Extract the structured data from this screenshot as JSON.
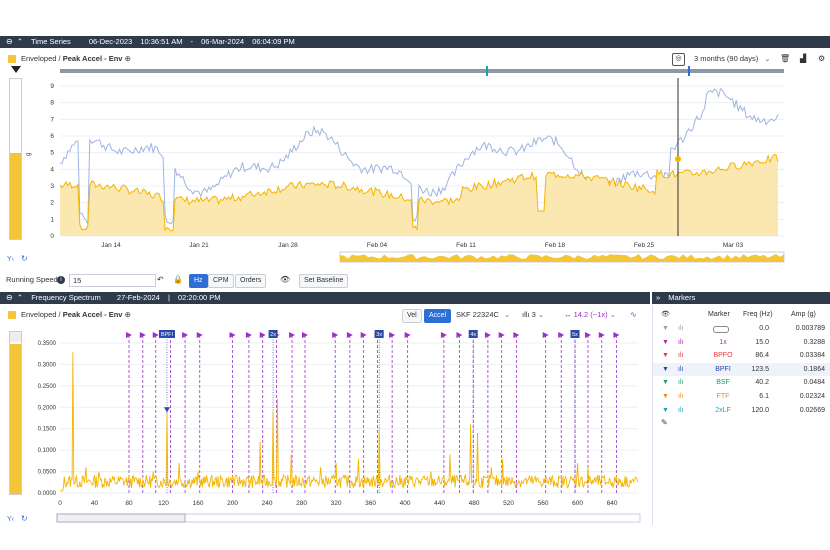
{
  "ts_header": {
    "title": "Time Series",
    "start": "06-Dec-2023",
    "start_time": "10:36:51 AM",
    "end": "06-Mar-2024",
    "end_time": "06:04:09 PM"
  },
  "ts_toolbar": {
    "measurement_prefix": "Enveloped /",
    "measurement": "Peak Accel - Env",
    "range": "3 months (90 days)"
  },
  "ts_chart": {
    "y_ticks": [
      "0",
      "1",
      "2",
      "3",
      "4",
      "5",
      "6",
      "7",
      "8",
      "9"
    ],
    "y_unit": "g",
    "x_ticks": [
      "Jan 14",
      "Jan 21",
      "Jan 28",
      "Feb 04",
      "Feb 11",
      "Feb 18",
      "Feb 25",
      "Mar 03"
    ]
  },
  "controls": {
    "running_speed_label": "Running Speed",
    "running_speed_value": "15",
    "hz_label": "Hz",
    "cpm_label": "CPM",
    "orders_label": "Orders",
    "set_baseline_label": "Set Baseline"
  },
  "fs_header": {
    "title": "Frequency Spectrum",
    "date": "27-Feb-2024",
    "time": "02:20:00 PM"
  },
  "fs_toolbar": {
    "measurement_prefix": "Enveloped /",
    "measurement": "Peak Accel - Env",
    "vel_label": "Vel",
    "accel_label": "Accel",
    "bearing": "SKF 22324C",
    "harmonics": "3",
    "sideband": "14.2 (~1x)"
  },
  "fs_chart": {
    "y_ticks": [
      "0.0000",
      "0.0500",
      "0.1000",
      "0.1500",
      "0.2000",
      "0.2500",
      "0.3000",
      "0.3500"
    ],
    "x_ticks": [
      "0",
      "40",
      "80",
      "120",
      "160",
      "200",
      "240",
      "280",
      "320",
      "360",
      "400",
      "440",
      "480",
      "520",
      "560",
      "600",
      "640"
    ],
    "tags": {
      "bpfi": "BPFI",
      "h2": "2x",
      "h3": "3x",
      "h4": "4x",
      "h5": "5x"
    }
  },
  "markers_panel": {
    "title": "Markers",
    "col_marker": "Marker",
    "col_freq": "Freq (Hz)",
    "col_amp": "Amp (g)",
    "rows": [
      {
        "name": "",
        "freq": "0.0",
        "amp": "0.003789",
        "color": "#9aa0a8"
      },
      {
        "name": "1x",
        "freq": "15.0",
        "amp": "0.3288",
        "color": "#b027b0"
      },
      {
        "name": "BPFO",
        "freq": "86.4",
        "amp": "0.03384",
        "color": "#e23b3b"
      },
      {
        "name": "BPFI",
        "freq": "123.5",
        "amp": "0.1864",
        "color": "#2a4aa8"
      },
      {
        "name": "BSF",
        "freq": "40.2",
        "amp": "0.0484",
        "color": "#1f9c6a"
      },
      {
        "name": "FTF",
        "freq": "6.1",
        "amp": "0.02324",
        "color": "#f08c1a"
      },
      {
        "name": "2xLF",
        "freq": "120.0",
        "amp": "0.02669",
        "color": "#1aa3c8"
      }
    ]
  },
  "colors": {
    "header_bg": "#2f3a4a",
    "series_yellow": "#f4b400",
    "series_blue": "#9fb4e0",
    "accent_blue": "#2d6fd6",
    "marker_purple": "#9b30c8"
  }
}
